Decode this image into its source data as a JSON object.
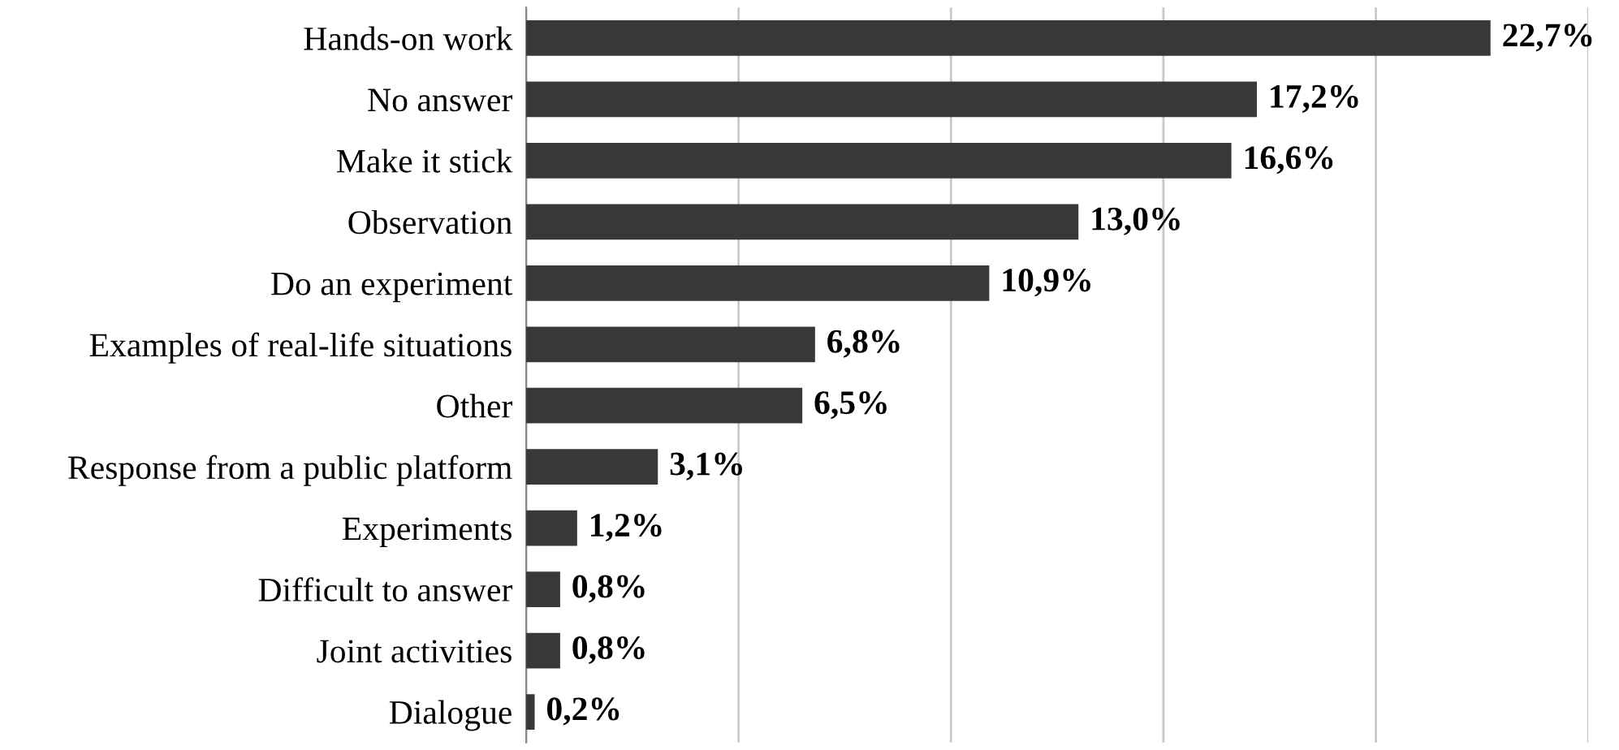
{
  "chart_data": {
    "type": "bar",
    "orientation": "horizontal",
    "categories": [
      "Hands-on work",
      "No answer",
      "Make it stick",
      "Observation",
      "Do an experiment",
      "Examples of real-life situations",
      "Other",
      "Response from a public platform",
      "Experiments",
      "Difficult to answer",
      "Joint activities",
      "Dialogue"
    ],
    "values": [
      22.7,
      17.2,
      16.6,
      13.0,
      10.9,
      6.8,
      6.5,
      3.1,
      1.2,
      0.8,
      0.8,
      0.2
    ],
    "value_labels": [
      "22,7%",
      "17,2%",
      "16,6%",
      "13,0%",
      "10,9%",
      "6,8%",
      "6,5%",
      "3,1%",
      "1,2%",
      "0,8%",
      "0,8%",
      "0,2%"
    ],
    "color": "#383838",
    "xlim": [
      0,
      25
    ],
    "xticks": [
      {
        "value": 0,
        "label": null
      },
      {
        "value": 5,
        "label": null
      },
      {
        "value": 10,
        "label": null
      },
      {
        "value": 15,
        "label": null
      },
      {
        "value": 20,
        "label": null
      },
      {
        "value": 25,
        "label": null
      }
    ],
    "grid": "x",
    "tick_labels": "y",
    "legend": false
  }
}
